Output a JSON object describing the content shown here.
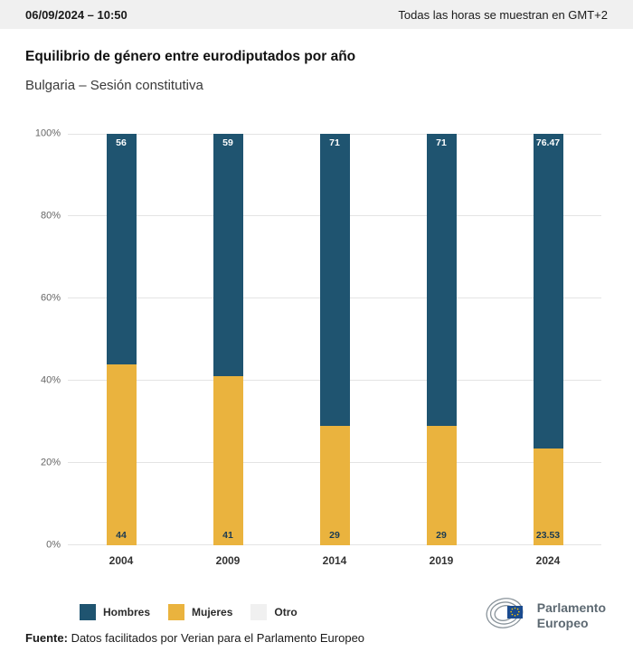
{
  "header": {
    "datetime": "06/09/2024 – 10:50",
    "timezone_note": "Todas las horas se muestran en GMT+2"
  },
  "title": "Equilibrio de género entre eurodiputados por año",
  "subtitle": "Bulgaria – Sesión constitutiva",
  "chart_data": {
    "type": "bar",
    "stacked": true,
    "categories": [
      "2004",
      "2009",
      "2014",
      "2019",
      "2024"
    ],
    "series": [
      {
        "name": "Hombres",
        "color": "#1f5470",
        "label_color": "#ffffff",
        "values": [
          56,
          59,
          71,
          71,
          76.47
        ],
        "labels": [
          "56",
          "59",
          "71",
          "71",
          "76.47"
        ]
      },
      {
        "name": "Mujeres",
        "color": "#eab33e",
        "label_color": "#1a3a52",
        "values": [
          44,
          41,
          29,
          29,
          23.53
        ],
        "labels": [
          "44",
          "41",
          "29",
          "29",
          "23.53"
        ]
      },
      {
        "name": "Otro",
        "color": "#f0f0f0",
        "label_color": "#333333",
        "values": [
          0,
          0,
          0,
          0,
          0
        ],
        "labels": [
          "",
          "",
          "",
          "",
          ""
        ]
      }
    ],
    "ylim": [
      0,
      100
    ],
    "yticks": [
      "0%",
      "20%",
      "40%",
      "60%",
      "80%",
      "100%"
    ],
    "grid": true,
    "legend_position": "bottom"
  },
  "legend": [
    {
      "label": "Hombres",
      "color": "#1f5470"
    },
    {
      "label": "Mujeres",
      "color": "#eab33e"
    },
    {
      "label": "Otro",
      "color": "#f0f0f0"
    }
  ],
  "logo": {
    "line1": "Parlamento",
    "line2": "Europeo"
  },
  "footer": {
    "source_label": "Fuente:",
    "source_text": " Datos facilitados por Verian para el Parlamento Europeo"
  }
}
